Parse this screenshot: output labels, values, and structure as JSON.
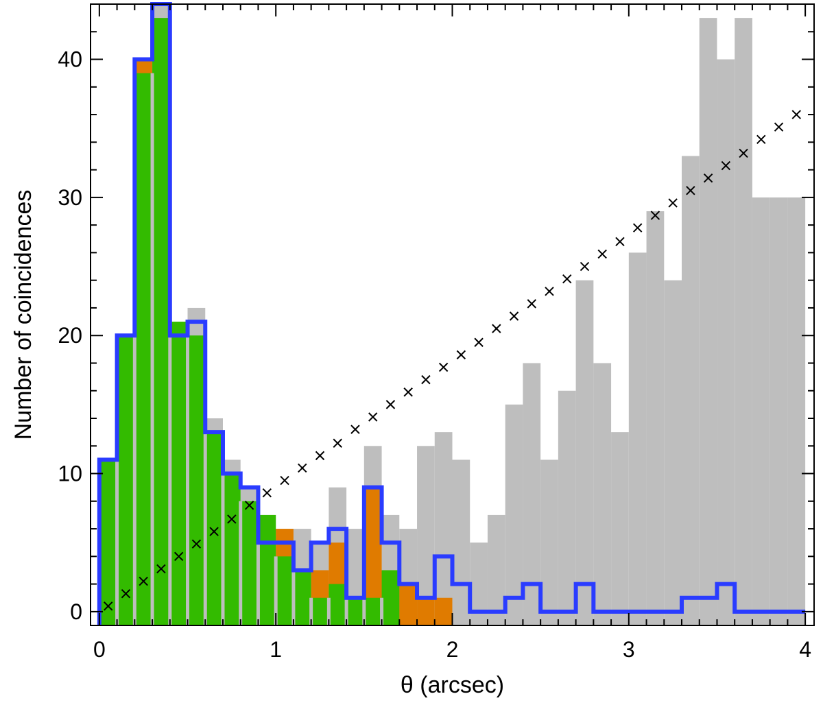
{
  "chart_data": {
    "type": "bar",
    "title": "",
    "xlabel": "θ (arcsec)",
    "ylabel": "Number of coincidences",
    "xlim": [
      -0.05,
      4.05
    ],
    "ylim": [
      -1,
      44
    ],
    "x_ticks": [
      0,
      1,
      2,
      3,
      4
    ],
    "x_tick_labels": [
      "0",
      "1",
      "2",
      "3",
      "4"
    ],
    "y_ticks": [
      0,
      10,
      20,
      30,
      40
    ],
    "y_tick_labels": [
      "0",
      "10",
      "20",
      "30",
      "40"
    ],
    "bin_width": 0.1,
    "bin_edges_start": 0,
    "series": [
      {
        "style": "filled-bars",
        "color": "#bebebe",
        "values": [
          11,
          20,
          40,
          44,
          21,
          22,
          14,
          11,
          9,
          7,
          6,
          6,
          5,
          9,
          6,
          12,
          7,
          6,
          12,
          13,
          11,
          5,
          7,
          15,
          18,
          11,
          16,
          24,
          18,
          13,
          26,
          29,
          24,
          33,
          43,
          40,
          43,
          30,
          30,
          30
        ]
      },
      {
        "style": "filled-bars",
        "color": "#e07b00",
        "values": [
          0,
          0,
          40,
          0,
          0,
          0,
          0,
          0,
          0,
          6,
          6,
          0,
          3,
          5,
          0,
          9,
          3,
          2,
          1,
          1
        ]
      },
      {
        "style": "filled-bars",
        "color": "#33bb00",
        "values": [
          11,
          20,
          39,
          43,
          21,
          20,
          13,
          10,
          8,
          7,
          4,
          3,
          1,
          2,
          1,
          1,
          3
        ]
      },
      {
        "style": "step-outline",
        "color": "#2a3cff",
        "values": [
          11,
          20,
          40,
          44,
          20,
          21,
          13,
          10,
          9,
          5,
          5,
          3,
          5,
          6,
          1,
          9,
          5,
          2,
          1,
          4,
          2,
          0,
          0,
          1,
          2,
          0,
          0,
          2,
          0,
          0,
          0,
          0,
          0,
          1,
          1,
          2,
          0,
          0,
          0,
          0
        ]
      },
      {
        "style": "x-markers",
        "color": "#000000",
        "x": [
          0.05,
          0.15,
          0.25,
          0.35,
          0.45,
          0.55,
          0.65,
          0.75,
          0.85,
          0.95,
          1.05,
          1.15,
          1.25,
          1.35,
          1.45,
          1.55,
          1.65,
          1.75,
          1.85,
          1.95,
          2.05,
          2.15,
          2.25,
          2.35,
          2.45,
          2.55,
          2.65,
          2.75,
          2.85,
          2.95,
          3.05,
          3.15,
          3.25,
          3.35,
          3.45,
          3.55,
          3.65,
          3.75,
          3.85,
          3.95
        ],
        "y": [
          0.4,
          1.3,
          2.2,
          3.1,
          4.0,
          4.9,
          5.8,
          6.7,
          7.7,
          8.6,
          9.5,
          10.4,
          11.3,
          12.2,
          13.2,
          14.1,
          15.0,
          15.9,
          16.8,
          17.7,
          18.6,
          19.5,
          20.5,
          21.4,
          22.3,
          23.2,
          24.1,
          25.0,
          25.9,
          26.8,
          27.8,
          28.7,
          29.6,
          30.5,
          31.4,
          32.3,
          33.2,
          34.2,
          35.1,
          36.0
        ]
      }
    ]
  }
}
